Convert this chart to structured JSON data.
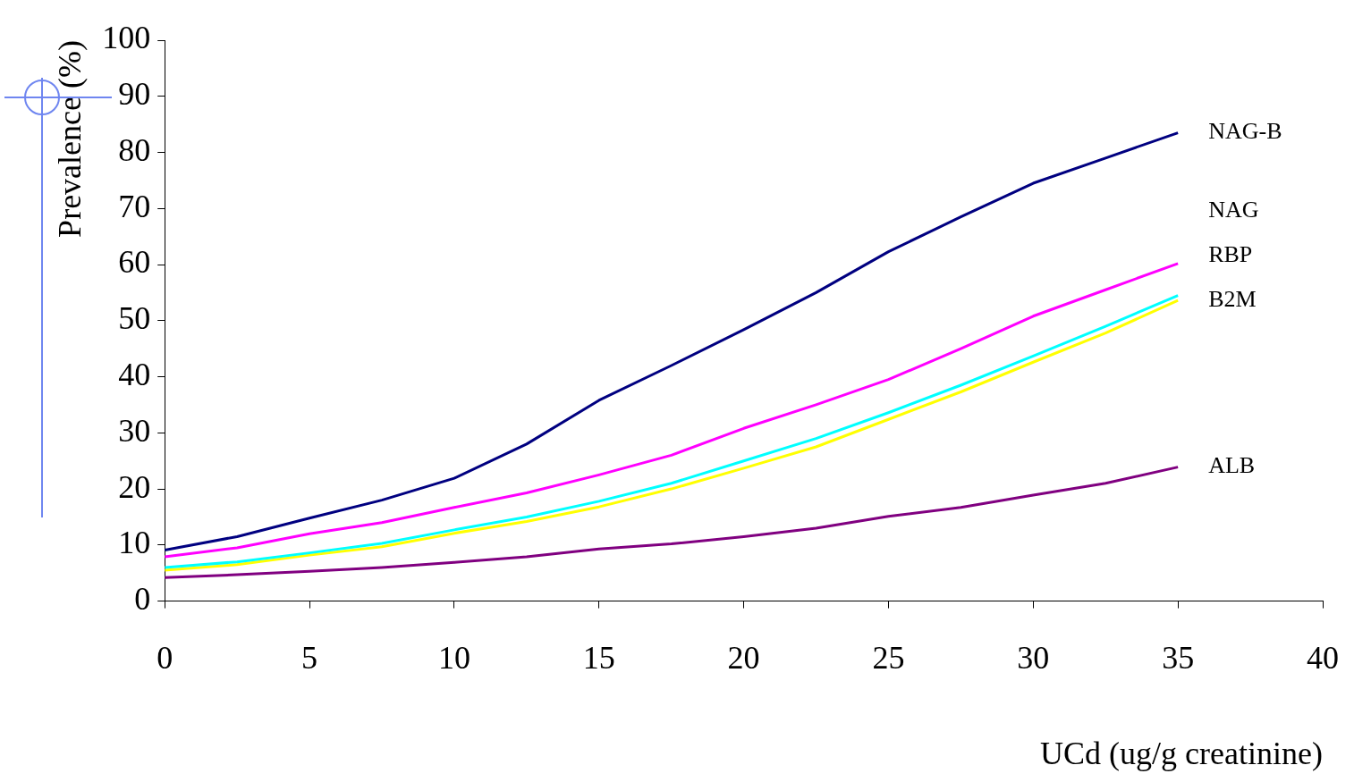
{
  "chart_data": {
    "type": "line",
    "xlabel": "UCd (ug/g creatinine)",
    "ylabel": "Prevalence (%)",
    "x": [
      0,
      2.5,
      5,
      7.5,
      10,
      12.5,
      15,
      17.5,
      20,
      22.5,
      25,
      27.5,
      30,
      32.5,
      35
    ],
    "xlim": [
      0,
      40
    ],
    "xticks": [
      0,
      5,
      10,
      15,
      20,
      25,
      30,
      35,
      40
    ],
    "ylim": [
      0,
      100
    ],
    "yticks": [
      0,
      10,
      20,
      30,
      40,
      50,
      60,
      70,
      80,
      90,
      100
    ],
    "grid": false,
    "legend": false,
    "marker": "none",
    "line_style": "solid",
    "series": [
      {
        "name": "NAG-B",
        "color": "#000080",
        "values": [
          9.1,
          11.5,
          14.8,
          18,
          21.9,
          28,
          35.8,
          42,
          48.4,
          55,
          62.3,
          68.5,
          74.5,
          79,
          83.5
        ]
      },
      {
        "name": "NAG",
        "color": "#ff00ff",
        "values": [
          7.9,
          9.5,
          12,
          14,
          16.7,
          19.3,
          22.5,
          26,
          30.8,
          35,
          39.5,
          45,
          50.8,
          55.5,
          60.2
        ]
      },
      {
        "name": "RBP",
        "color": "#00ffff",
        "values": [
          6,
          7,
          8.6,
          10.3,
          12.7,
          15,
          17.8,
          21,
          25,
          29,
          33.6,
          38.5,
          43.7,
          49,
          54.5
        ]
      },
      {
        "name": "B2M",
        "color": "#ffff00",
        "values": [
          5.5,
          6.5,
          8.2,
          9.7,
          12.1,
          14.2,
          16.8,
          20,
          23.7,
          27.5,
          32.4,
          37.3,
          42.6,
          47.8,
          53.6
        ]
      },
      {
        "name": "ALB",
        "color": "#800080",
        "values": [
          4.2,
          4.7,
          5.3,
          6,
          6.9,
          7.9,
          9.3,
          10.2,
          11.5,
          13,
          15.1,
          16.7,
          18.9,
          21,
          23.9
        ]
      }
    ]
  }
}
